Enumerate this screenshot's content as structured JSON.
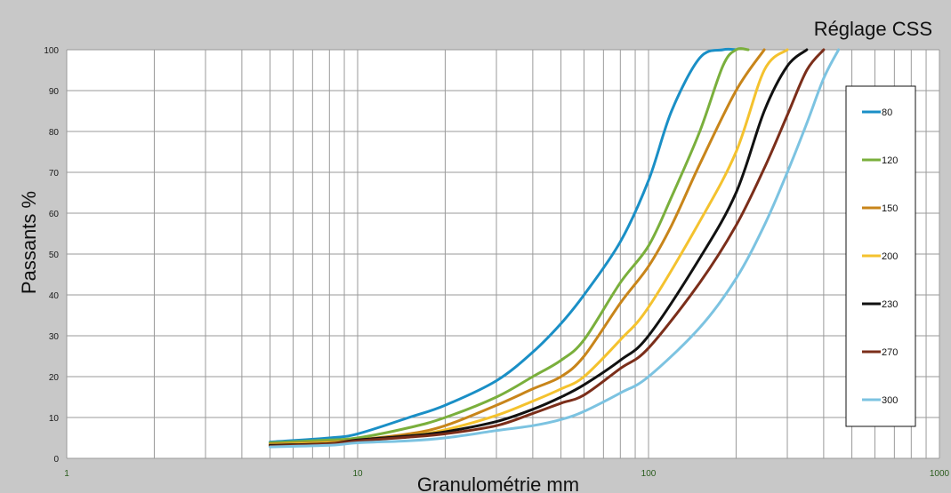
{
  "chart_data": {
    "type": "line",
    "title": "Réglage CSS",
    "xlabel": "Granulométrie mm",
    "ylabel": "Passants %",
    "x_scale": "log",
    "xlim": [
      1,
      1000
    ],
    "ylim": [
      0,
      100
    ],
    "x_ticks": [
      "1",
      "10",
      "100",
      "1000"
    ],
    "y_ticks": [
      "0",
      "10",
      "20",
      "30",
      "40",
      "50",
      "60",
      "70",
      "80",
      "90",
      "100"
    ],
    "grid": true,
    "legend_position": "right",
    "series": [
      {
        "name": "80",
        "color": "#1a8fc6",
        "x": [
          5,
          8,
          10,
          15,
          20,
          30,
          40,
          50,
          60,
          80,
          100,
          120,
          150,
          180,
          200
        ],
        "y": [
          4,
          5,
          6,
          10,
          13,
          19,
          26,
          33,
          40,
          53,
          68,
          85,
          98,
          100,
          100
        ]
      },
      {
        "name": "120",
        "color": "#7aaf3c",
        "x": [
          5,
          8,
          10,
          15,
          20,
          30,
          40,
          50,
          60,
          80,
          100,
          120,
          150,
          180,
          200,
          220
        ],
        "y": [
          3.8,
          4.5,
          5,
          7.5,
          10,
          15,
          20,
          24,
          29,
          43,
          52,
          64,
          80,
          96,
          100,
          100
        ]
      },
      {
        "name": "150",
        "color": "#c8851a",
        "x": [
          5,
          8,
          10,
          15,
          20,
          30,
          40,
          50,
          60,
          80,
          100,
          120,
          150,
          200,
          250
        ],
        "y": [
          3.5,
          4,
          4.5,
          6,
          8,
          13,
          17,
          20,
          25,
          38,
          47,
          57,
          72,
          90,
          100
        ]
      },
      {
        "name": "200",
        "color": "#f4c22e",
        "x": [
          5,
          8,
          10,
          15,
          20,
          30,
          40,
          50,
          60,
          80,
          100,
          150,
          200,
          250,
          300
        ],
        "y": [
          3.3,
          3.8,
          4.2,
          5.5,
          7,
          10.5,
          14,
          17,
          20,
          29,
          37,
          58,
          75,
          95,
          100
        ]
      },
      {
        "name": "230",
        "color": "#111111",
        "x": [
          5,
          8,
          10,
          15,
          20,
          30,
          40,
          50,
          60,
          80,
          100,
          150,
          200,
          250,
          300,
          350
        ],
        "y": [
          3.2,
          3.6,
          4.5,
          5.5,
          6.5,
          9,
          12,
          15,
          18,
          24,
          30,
          49,
          65,
          85,
          96,
          100
        ]
      },
      {
        "name": "270",
        "color": "#7b2e1a",
        "x": [
          5,
          8,
          10,
          15,
          20,
          30,
          40,
          50,
          60,
          80,
          100,
          150,
          200,
          250,
          300,
          350,
          400
        ],
        "y": [
          3,
          3.5,
          4.3,
          5.2,
          6,
          8,
          11,
          13.5,
          15.5,
          22,
          27,
          43,
          57,
          71,
          84,
          95,
          100
        ]
      },
      {
        "name": "300",
        "color": "#7cc3e1",
        "x": [
          5,
          8,
          10,
          15,
          20,
          30,
          40,
          50,
          60,
          80,
          100,
          150,
          200,
          250,
          300,
          350,
          400,
          450
        ],
        "y": [
          2.8,
          3.2,
          3.8,
          4.3,
          5,
          6.8,
          8,
          9.5,
          11.5,
          16,
          20,
          32,
          44,
          57,
          70,
          82,
          93,
          100
        ]
      }
    ]
  }
}
